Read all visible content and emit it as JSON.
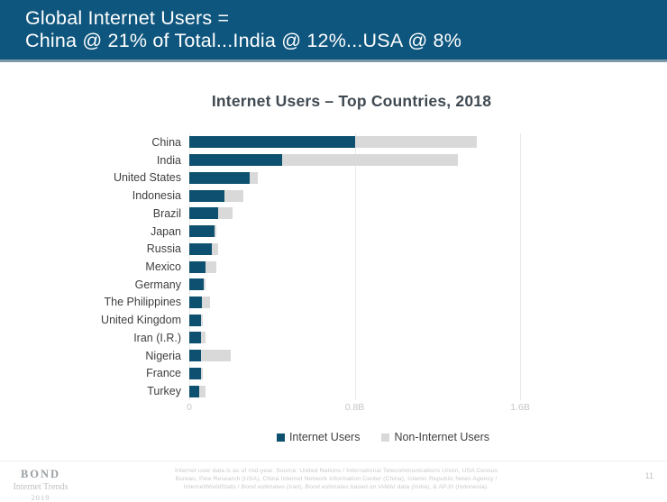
{
  "header": {
    "line1": "Global Internet Users =",
    "line2": "China @ 21% of Total...India @ 12%...USA @ 8%",
    "bg_color": "#0E567E",
    "accent_line_color": "#7F99AB"
  },
  "chart_data": {
    "type": "bar",
    "orientation": "horizontal",
    "stacked": true,
    "title": "Internet Users – Top Countries, 2018",
    "unit": "billions of people",
    "categories": [
      "China",
      "India",
      "United States",
      "Indonesia",
      "Brazil",
      "Japan",
      "Russia",
      "Mexico",
      "Germany",
      "The Philippines",
      "United Kingdom",
      "Iran (I.R.)",
      "Nigeria",
      "France",
      "Turkey"
    ],
    "series": [
      {
        "name": "Internet Users",
        "color": "#0D506F",
        "values": [
          0.8,
          0.45,
          0.29,
          0.17,
          0.14,
          0.12,
          0.11,
          0.08,
          0.07,
          0.06,
          0.055,
          0.055,
          0.055,
          0.055,
          0.05
        ]
      },
      {
        "name": "Non-Internet Users",
        "color": "#D9D9D9",
        "values": [
          0.59,
          0.85,
          0.04,
          0.09,
          0.07,
          0.01,
          0.03,
          0.05,
          0.01,
          0.04,
          0.01,
          0.025,
          0.145,
          0.01,
          0.03
        ]
      }
    ],
    "x_axis": {
      "ticks": [
        "0",
        "0.8B",
        "1.6B"
      ],
      "tick_values": [
        0,
        0.8,
        1.6
      ],
      "range": [
        0,
        1.87
      ]
    },
    "legend_position": "bottom",
    "gridlines": true
  },
  "footer": {
    "logo": {
      "line1": "BOND",
      "line2": "Internet Trends",
      "line3": "2019"
    },
    "disclaimer_lines": [
      "Internet user data is as of mid-year.  Source: United Nations / International Telecommunications Union, USA Census",
      "Bureau, Pew Research (USA), China Internet Network Information Center (China), Islamic Republic News Agency /",
      "InternetWorldStats / Bond estimates (Iran), Bond estimates based on IAMAI data (India), & APJII (Indonesia)."
    ],
    "page_number": "11"
  }
}
